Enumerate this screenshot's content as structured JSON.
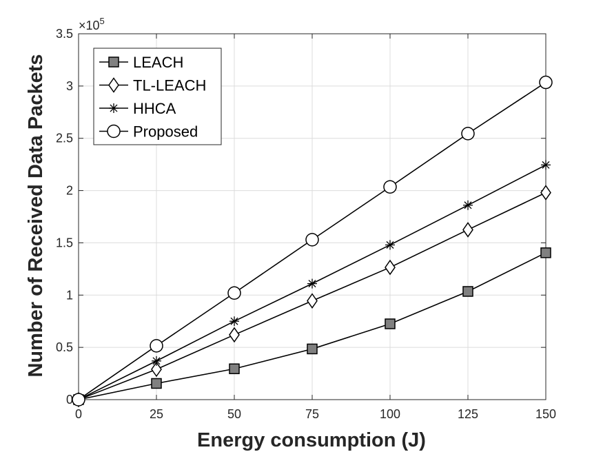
{
  "chart_data": {
    "type": "line",
    "xlabel": "Energy consumption (J)",
    "ylabel": "Number of Received Data Packets",
    "x": [
      0,
      25,
      50,
      75,
      100,
      125,
      150
    ],
    "xlim": [
      0,
      150
    ],
    "ylim": [
      0,
      350000
    ],
    "x_ticks": [
      "0",
      "25",
      "50",
      "75",
      "100",
      "125",
      "150"
    ],
    "y_ticks": [
      "0",
      "0.5",
      "1",
      "1.5",
      "2",
      "2.5",
      "3",
      "3.5"
    ],
    "y_multiplier": {
      "base": "×10",
      "exponent": "5"
    },
    "grid": true,
    "legend_position": "top-left",
    "series": [
      {
        "name": "LEACH",
        "marker": "square",
        "values": [
          0,
          15500,
          29500,
          48500,
          72500,
          103500,
          140500
        ]
      },
      {
        "name": "TL-LEACH",
        "marker": "diamond",
        "values": [
          0,
          29000,
          62000,
          94500,
          126500,
          162500,
          198000
        ]
      },
      {
        "name": "HHCA",
        "marker": "asterisk",
        "values": [
          0,
          37000,
          75000,
          111000,
          148000,
          186000,
          224500
        ]
      },
      {
        "name": "Proposed",
        "marker": "circle",
        "values": [
          0,
          51500,
          102000,
          153000,
          203500,
          254500,
          303500
        ]
      }
    ],
    "colors": {
      "line": "#000000",
      "square_fill": "#808080",
      "grid": "#dcdcdc",
      "axis": "#262626"
    }
  }
}
